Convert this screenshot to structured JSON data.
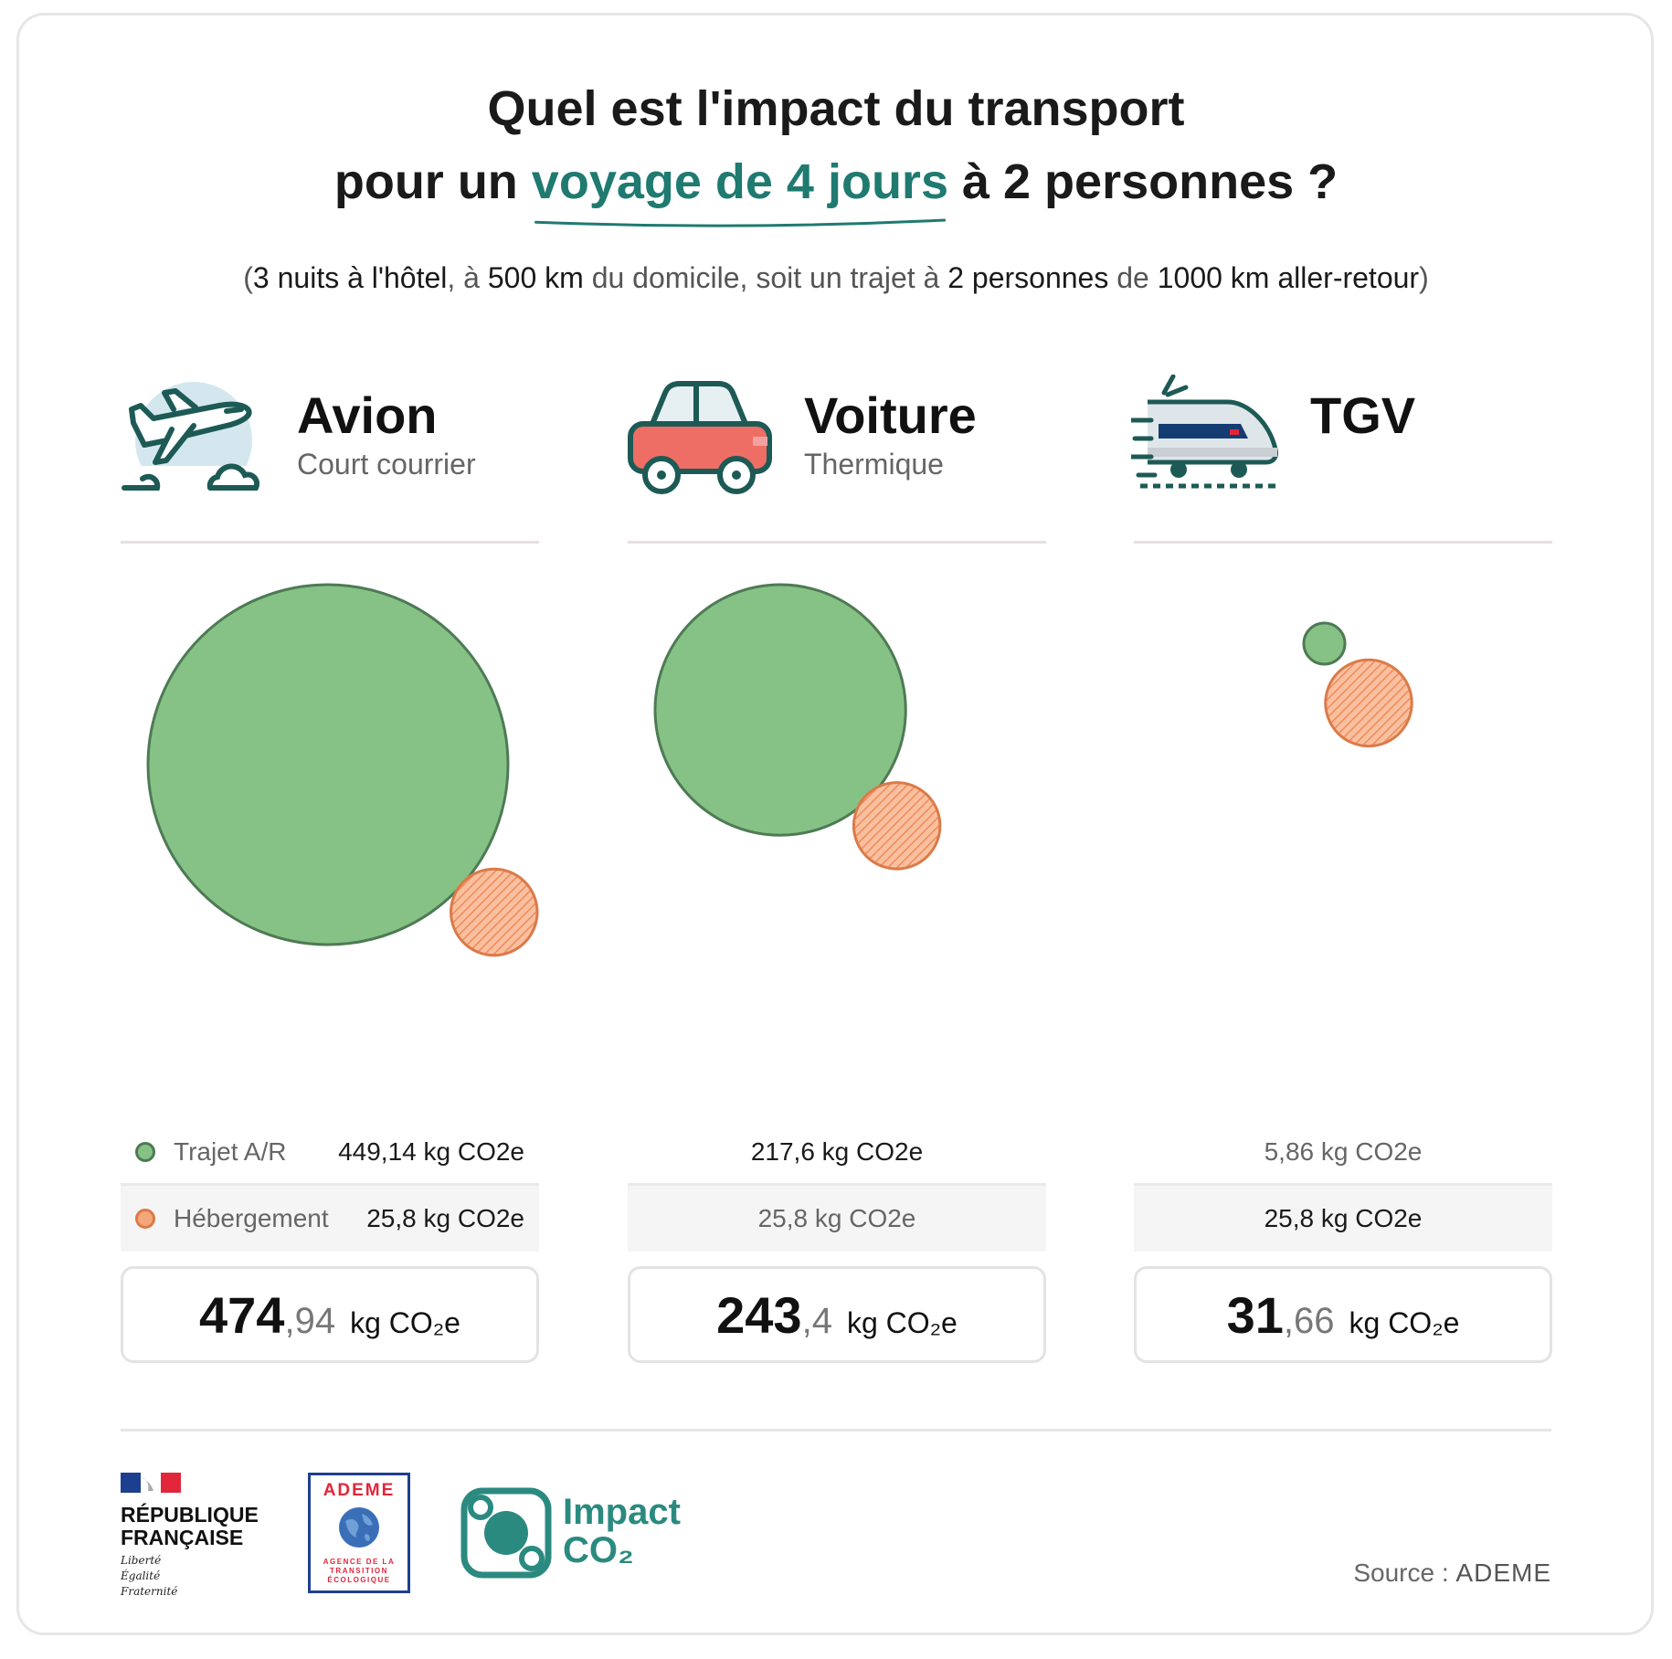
{
  "title": {
    "line1": "Quel est l'impact du transport",
    "line2_pre": "pour un ",
    "line2_highlight": "voyage de 4 jours",
    "line2_post": " à 2 personnes ?"
  },
  "subtitle": {
    "p1": "(",
    "b1": "3 nuits à l'hôtel",
    "p2": ", à ",
    "b2": "500 km",
    "p3": " du domicile, soit un trajet à ",
    "b3": "2 personnes",
    "p4": " de ",
    "b4": "1000 km aller-retour",
    "p5": ")"
  },
  "colors": {
    "trajet": "#86c285",
    "trajet_stroke": "#4e7a55",
    "hebergement": "#f5a77c",
    "hebergement_stroke": "#db7a48",
    "accent": "#1f7a70"
  },
  "legend": {
    "trajet": "Trajet A/R",
    "hebergement": "Hébergement"
  },
  "modes": [
    {
      "name": "Avion",
      "sub": "Court courrier",
      "icon": "airplane-icon",
      "trajet": "449,14 kg CO2e",
      "hebergement": "25,8 kg CO2e",
      "total_int": "474",
      "total_dec": ",94",
      "unit": "kg CO₂e"
    },
    {
      "name": "Voiture",
      "sub": "Thermique",
      "icon": "car-icon",
      "trajet": "217,6 kg CO2e",
      "hebergement": "25,8 kg CO2e",
      "total_int": "243",
      "total_dec": ",4",
      "unit": "kg CO₂e"
    },
    {
      "name": "TGV",
      "sub": "",
      "icon": "train-icon",
      "trajet": "5,86 kg CO2e",
      "hebergement": "25,8 kg CO2e",
      "total_int": "31",
      "total_dec": ",66",
      "unit": "kg CO₂e"
    }
  ],
  "chart_data": {
    "type": "bubble",
    "categories": [
      "Avion",
      "Voiture",
      "TGV"
    ],
    "series": [
      {
        "name": "Trajet A/R",
        "values": [
          449.14,
          217.6,
          5.86
        ]
      },
      {
        "name": "Hébergement",
        "values": [
          25.8,
          25.8,
          25.8
        ]
      }
    ],
    "totals": [
      474.94,
      243.4,
      31.66
    ],
    "unit": "kg CO2e"
  },
  "footer": {
    "rf_line1": "RÉPUBLIQUE",
    "rf_line2": "FRANÇAISE",
    "rf_motto1": "Liberté",
    "rf_motto2": "Égalité",
    "rf_motto3": "Fraternité",
    "ademe": "ADEME",
    "ademe_tag1": "AGENCE DE LA",
    "ademe_tag2": "TRANSITION",
    "ademe_tag3": "ÉCOLOGIQUE",
    "impact1": "Impact",
    "impact2": "CO₂",
    "source_label": "Source : ",
    "source_name": "ADEME"
  }
}
